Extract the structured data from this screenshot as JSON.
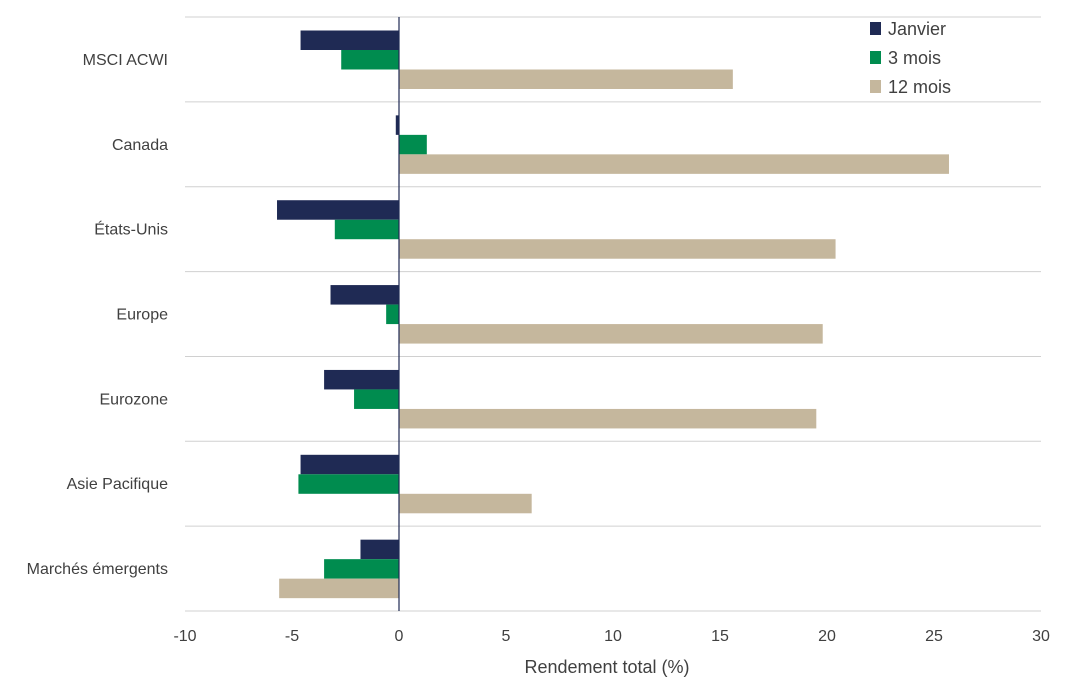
{
  "chart_data": {
    "type": "bar",
    "orientation": "horizontal",
    "categories": [
      "MSCI ACWI",
      "Canada",
      "États-Unis",
      "Europe",
      "Eurozone",
      "Asie Pacifique",
      "Marchés émergents"
    ],
    "series": [
      {
        "name": "Janvier",
        "color": "#1f2a54",
        "values": [
          -4.6,
          -0.15,
          -5.7,
          -3.2,
          -3.5,
          -4.6,
          -1.8
        ]
      },
      {
        "name": "3 mois",
        "color": "#008c4f",
        "values": [
          -2.7,
          1.3,
          -3.0,
          -0.6,
          -2.1,
          -4.7,
          -3.5
        ]
      },
      {
        "name": "12 mois",
        "color": "#c5b79d",
        "values": [
          15.6,
          25.7,
          20.4,
          19.8,
          19.5,
          6.2,
          -5.6
        ]
      }
    ],
    "xlabel": "Rendement total (%)",
    "xlim": [
      -10,
      30
    ],
    "xticks": [
      -10,
      -5,
      0,
      5,
      10,
      15,
      20,
      25,
      30
    ],
    "grid": "horizontal separators between categories",
    "legend_position": "top-right"
  }
}
